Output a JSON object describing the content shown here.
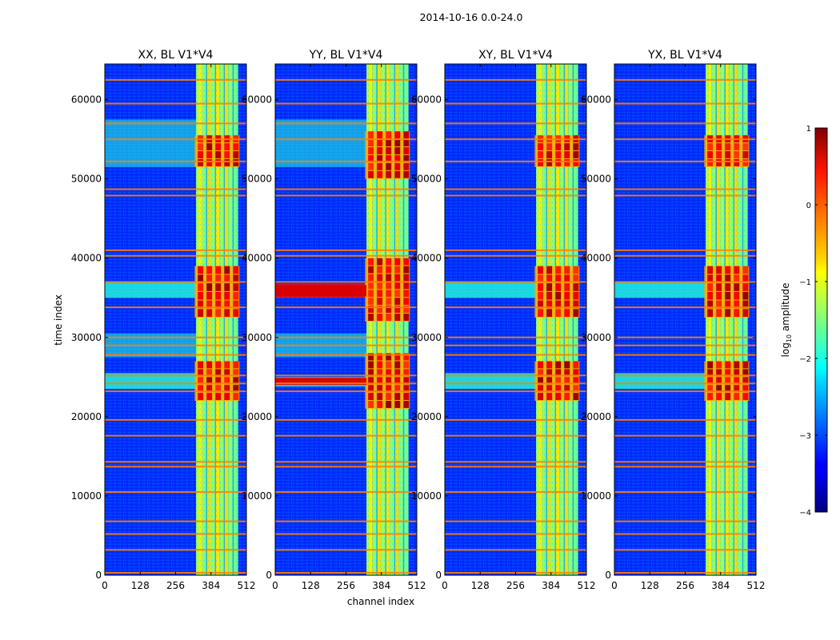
{
  "figure": {
    "suptitle": "2014-10-16 0.0-24.0"
  },
  "chart_data": {
    "type": "heatmap",
    "x_axis": {
      "label": "channel index",
      "range": [
        0,
        512
      ],
      "ticks": [
        0,
        128,
        256,
        384,
        512
      ]
    },
    "y_axis": {
      "label": "time index",
      "range": [
        0,
        64500
      ],
      "ticks": [
        0,
        10000,
        20000,
        30000,
        40000,
        50000,
        60000
      ]
    },
    "colorbar": {
      "label": "log10 amplitude",
      "label_main": "log",
      "label_sub": "10",
      "label_rest": " amplitude",
      "range": [
        -4,
        1
      ],
      "ticks": [
        -4,
        -3,
        -2,
        -1,
        0,
        1
      ],
      "tick_labels": [
        "−4",
        "−3",
        "−2",
        "−1",
        "0",
        "1"
      ],
      "colormap": "jet"
    },
    "panels": [
      {
        "title": "XX, BL V1*V4",
        "show_ytick_labels": true,
        "show_xlabel": false,
        "bright_channel_band": [
          330,
          482
        ],
        "strong_blocks_time": [
          [
            22000,
            27000
          ],
          [
            32500,
            39000
          ],
          [
            51500,
            55500
          ]
        ],
        "left_time_bands": [
          [
            35000,
            37000
          ],
          [
            23500,
            25500
          ],
          [
            51500,
            57500
          ],
          [
            27500,
            30500
          ]
        ]
      },
      {
        "title": "YY, BL V1*V4",
        "show_ytick_labels": true,
        "show_xlabel": true,
        "bright_channel_band": [
          330,
          482
        ],
        "strong_blocks_time": [
          [
            21000,
            28000
          ],
          [
            32000,
            40000
          ],
          [
            50000,
            56000
          ]
        ],
        "left_time_bands": [
          [
            35000,
            36800
          ],
          [
            23800,
            25000
          ],
          [
            51500,
            57500
          ],
          [
            27500,
            30500
          ]
        ]
      },
      {
        "title": "XY, BL V1*V4",
        "show_ytick_labels": true,
        "show_xlabel": false,
        "bright_channel_band": [
          330,
          482
        ],
        "strong_blocks_time": [
          [
            22000,
            27000
          ],
          [
            32500,
            39000
          ],
          [
            51500,
            55500
          ]
        ],
        "left_time_bands": [
          [
            35000,
            37000
          ],
          [
            23500,
            25500
          ]
        ]
      },
      {
        "title": "YX, BL V1*V4",
        "show_ytick_labels": true,
        "show_xlabel": false,
        "bright_channel_band": [
          330,
          482
        ],
        "strong_blocks_time": [
          [
            22000,
            27000
          ],
          [
            32500,
            39000
          ],
          [
            51500,
            55500
          ]
        ],
        "left_time_bands": [
          [
            35000,
            37000
          ],
          [
            23500,
            25500
          ]
        ]
      }
    ],
    "flagged_rows_time": [
      300,
      3200,
      5200,
      6800,
      10500,
      13700,
      14300,
      17600,
      19600,
      23200,
      24200,
      25200,
      27800,
      29000,
      30000,
      33800,
      37000,
      40300,
      41000,
      47900,
      48700,
      52200,
      55000,
      57000,
      59500,
      62500
    ]
  }
}
